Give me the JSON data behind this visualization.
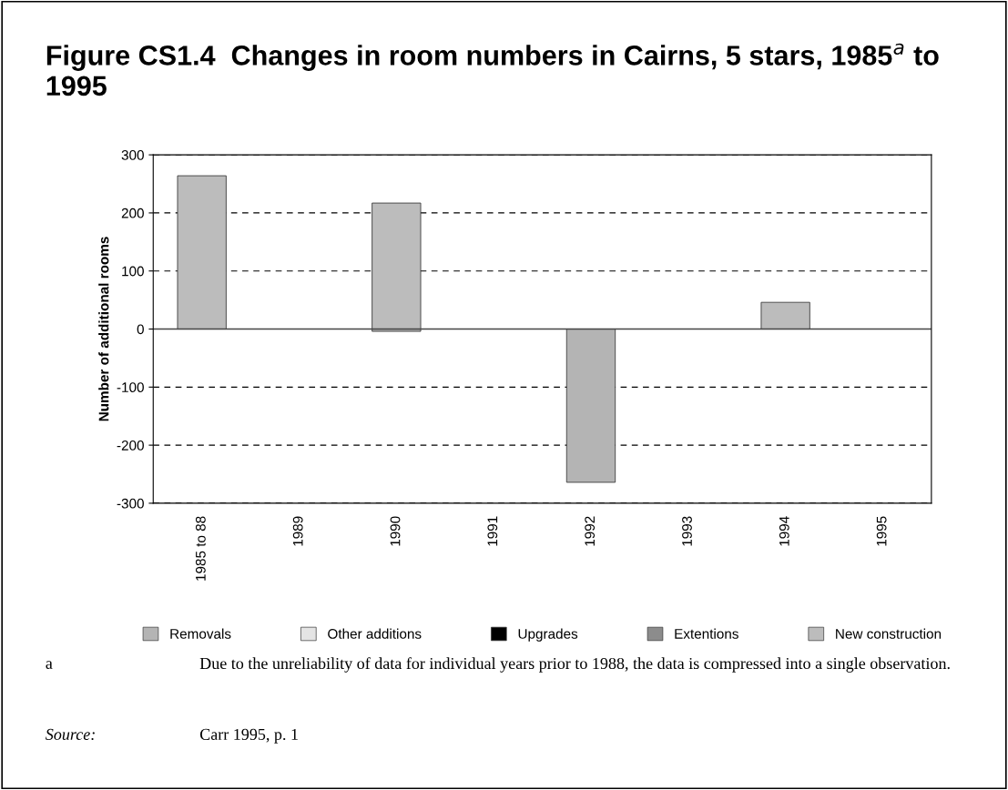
{
  "chart_data": {
    "type": "bar",
    "title": "Figure CS1.4  Changes in room numbers in Cairns, 5 stars, 1985$^{a}$ to 1995",
    "ylabel": "Number of additional rooms",
    "categories": [
      "1985 to 88",
      "1989",
      "1990",
      "1991",
      "1992",
      "1993",
      "1994",
      "1995"
    ],
    "series": [
      {
        "name": "Removals",
        "color": "#b4b4b4",
        "values": [
          null,
          null,
          -4,
          null,
          -264,
          null,
          null,
          null
        ]
      },
      {
        "name": "Other additions",
        "color": "#e4e4e4",
        "values": [
          null,
          null,
          null,
          null,
          null,
          null,
          null,
          null
        ]
      },
      {
        "name": "Upgrades",
        "color": "#000000",
        "values": [
          null,
          null,
          null,
          null,
          null,
          null,
          null,
          null
        ]
      },
      {
        "name": "Extentions",
        "color": "#8c8c8c",
        "values": [
          null,
          null,
          null,
          null,
          null,
          null,
          null,
          null
        ]
      },
      {
        "name": "New construction",
        "color": "#bcbcbc",
        "values": [
          264,
          null,
          217,
          null,
          null,
          null,
          46,
          null
        ]
      }
    ],
    "ylim": [
      -300,
      300
    ],
    "yticks": [
      -300,
      -200,
      -100,
      0,
      100,
      200,
      300
    ],
    "grid": "y",
    "legend": "bottom",
    "annotations": [
      "a",
      "Due to the unreliability of data for individual years prior to 1988, the data is compressed into a single observation.",
      "Source:",
      "Carr 1995, p. 1"
    ]
  }
}
